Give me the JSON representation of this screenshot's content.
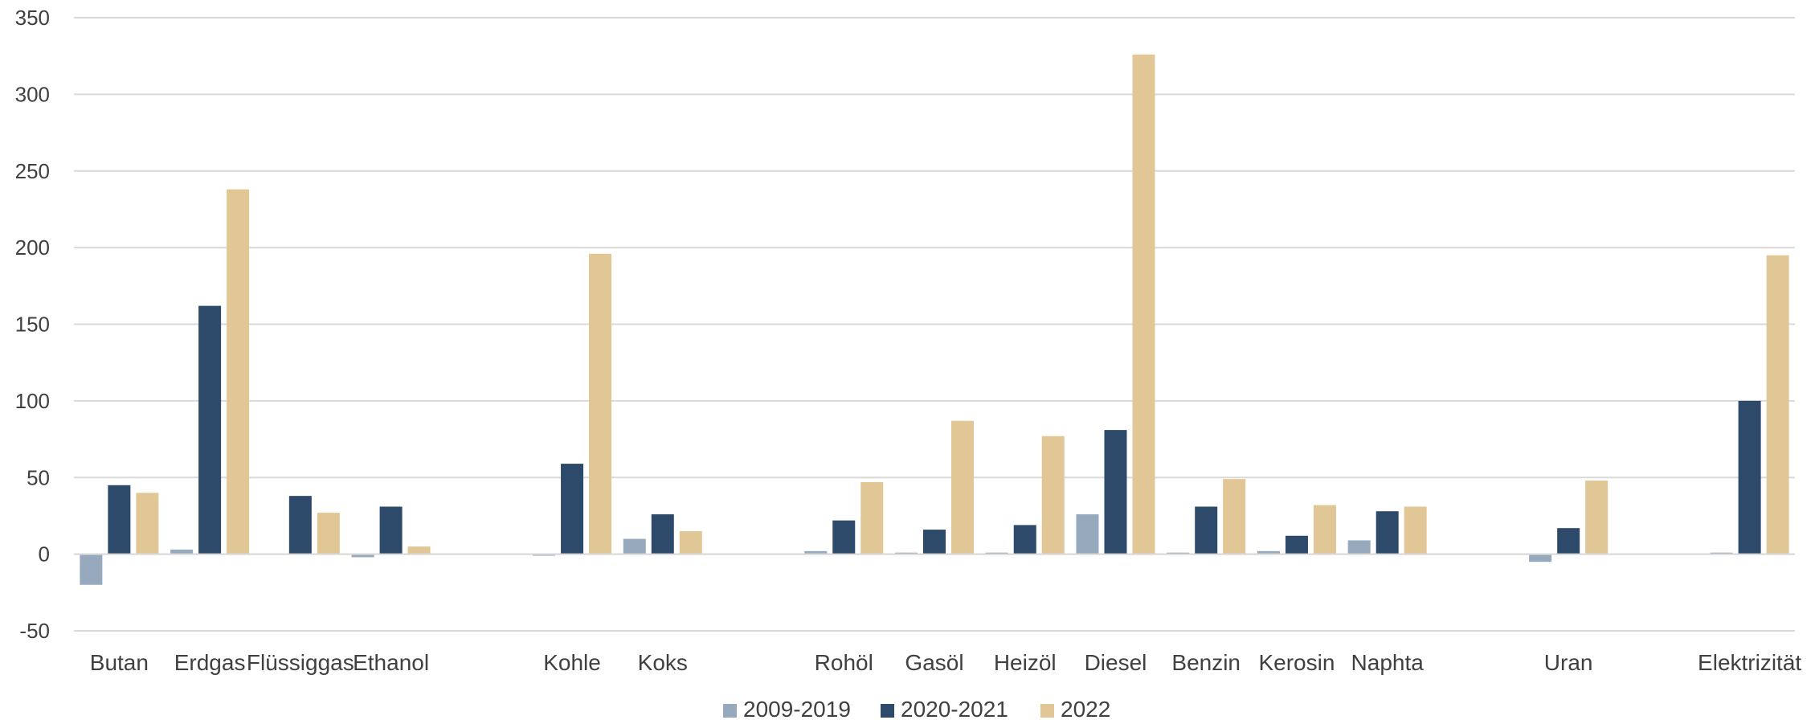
{
  "chart_data": {
    "type": "bar",
    "categories": [
      "Butan",
      "Erdgas",
      "Flüssiggas",
      "Ethanol",
      "",
      "Kohle",
      "Koks",
      "",
      "Rohöl",
      "Gasöl",
      "Heizöl",
      "Diesel",
      "Benzin",
      "Kerosin",
      "Naphta",
      "",
      "Uran",
      "",
      "Elektrizität"
    ],
    "series": [
      {
        "name": "2009-2019",
        "color": "#97aabd",
        "values": [
          -20,
          3,
          null,
          -2,
          null,
          -1,
          10,
          null,
          2,
          1,
          1,
          26,
          1,
          2,
          9,
          null,
          -5,
          null,
          1
        ]
      },
      {
        "name": "2020-2021",
        "color": "#2e4a6b",
        "values": [
          45,
          162,
          38,
          31,
          null,
          59,
          26,
          null,
          22,
          16,
          19,
          81,
          31,
          12,
          28,
          null,
          17,
          null,
          100
        ]
      },
      {
        "name": "2022",
        "color": "#e1c696",
        "values": [
          40,
          238,
          27,
          5,
          null,
          196,
          15,
          null,
          47,
          87,
          77,
          326,
          49,
          32,
          31,
          null,
          48,
          null,
          195
        ]
      }
    ],
    "ylim": [
      -50,
      350
    ],
    "yticks": [
      "-50",
      "0",
      "50",
      "100",
      "150",
      "200",
      "250",
      "300",
      "350"
    ],
    "grid": true,
    "legend_position": "bottom",
    "title": "",
    "xlabel": "",
    "ylabel": ""
  }
}
